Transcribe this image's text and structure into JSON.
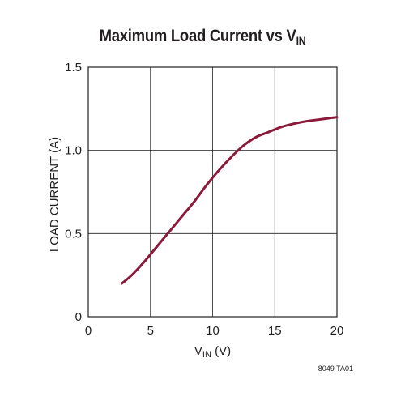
{
  "chart_data": {
    "type": "line",
    "title_main": "Maximum Load Current vs V",
    "title_sub": "IN",
    "xlabel_main": "V",
    "xlabel_sub": "IN",
    "xlabel_unit": " (V)",
    "ylabel": "LOAD CURRENT (A)",
    "xlim": [
      0,
      20
    ],
    "ylim": [
      0,
      1.5
    ],
    "x_ticks": [
      0,
      5,
      10,
      15,
      20
    ],
    "x_tick_labels": [
      "0",
      "5",
      "10",
      "15",
      "20"
    ],
    "y_ticks": [
      0,
      0.5,
      1.0,
      1.5
    ],
    "y_tick_labels": [
      "0",
      "0.5",
      "1.0",
      "1.5"
    ],
    "grid": true,
    "series": [
      {
        "color": "#8b1a3a",
        "x": [
          2.7,
          3.5,
          4.5,
          5.5,
          6.5,
          7.5,
          8.5,
          9.5,
          10.5,
          11.5,
          12.5,
          13.5,
          14.5,
          15.5,
          16.5,
          17.5,
          18.5,
          19.5,
          20
        ],
        "y": [
          0.2,
          0.25,
          0.33,
          0.42,
          0.51,
          0.6,
          0.69,
          0.79,
          0.88,
          0.96,
          1.03,
          1.08,
          1.11,
          1.14,
          1.16,
          1.175,
          1.185,
          1.195,
          1.2
        ]
      }
    ],
    "figure_code": "8049 TA01"
  }
}
